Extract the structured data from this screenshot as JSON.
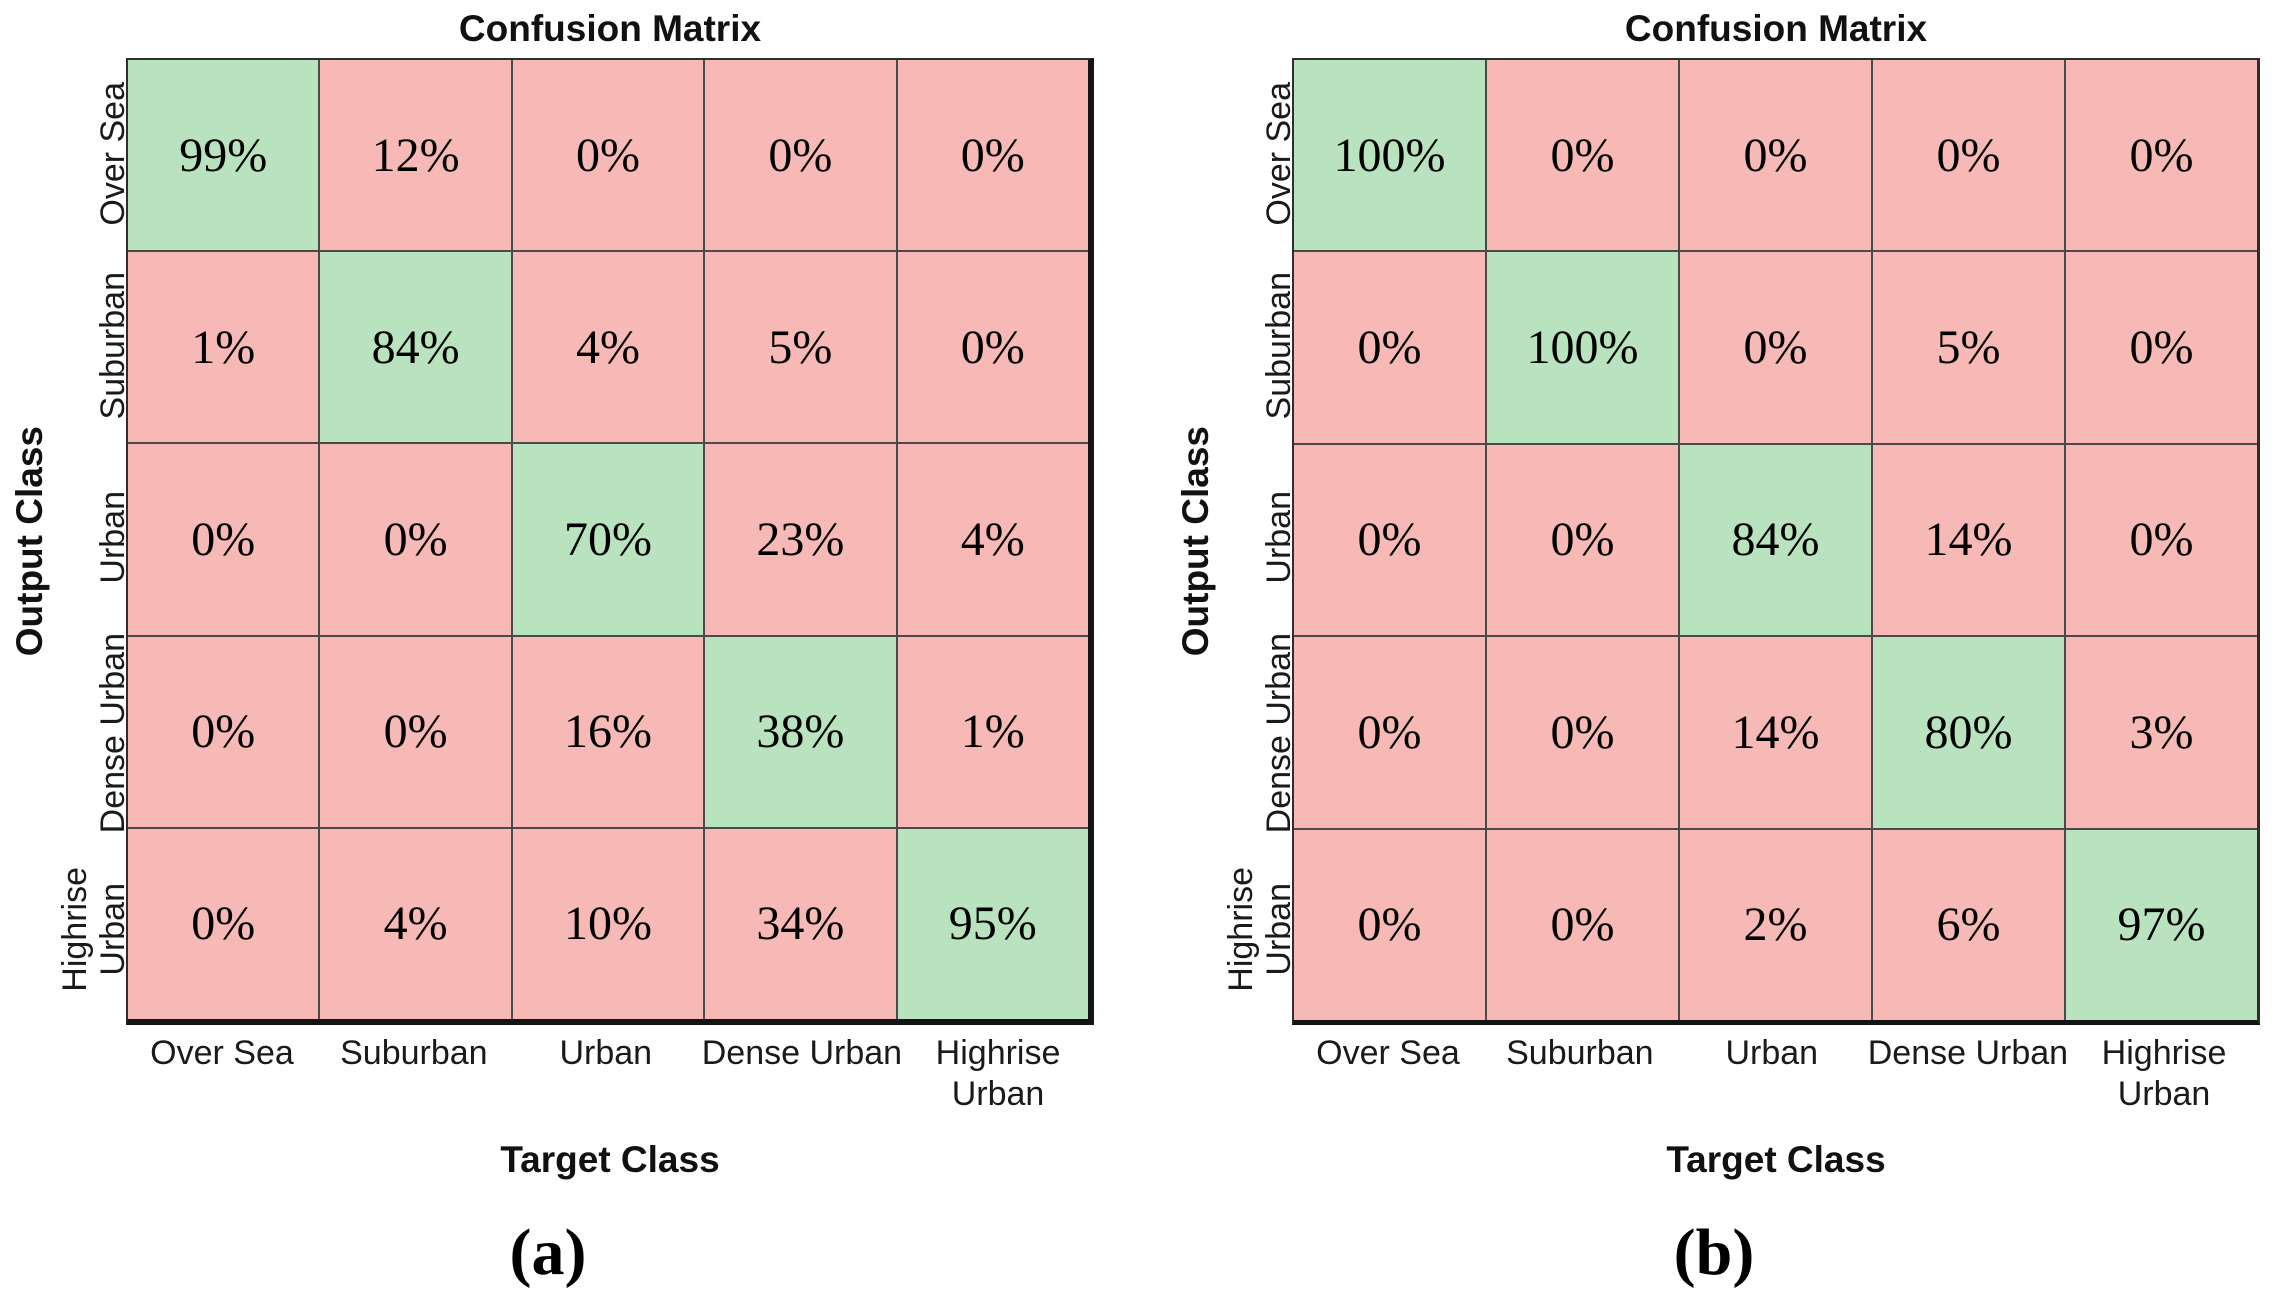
{
  "colors": {
    "grid_line": "#4a4a4a",
    "outer_border": "#2e2e2e",
    "heavy_border": "#141414",
    "diagonal": "#b9e3be",
    "off_diagonal": "#f6b9b6",
    "text": "#000000"
  },
  "chart_data": [
    {
      "type": "heatmap",
      "title": "Confusion Matrix",
      "xlabel": "Target Class",
      "ylabel": "Output Class",
      "caption": "(a)",
      "x_categories": [
        "Over Sea",
        "Suburban",
        "Urban",
        "Dense Urban",
        "Highrise Urban"
      ],
      "y_categories": [
        "Over Sea",
        "Suburban",
        "Urban",
        "Dense Urban",
        "Highrise Urban"
      ],
      "x_tick_lines": [
        [
          "Over Sea"
        ],
        [
          "Suburban"
        ],
        [
          "Urban"
        ],
        [
          "Dense Urban"
        ],
        [
          "Highrise",
          "Urban"
        ]
      ],
      "y_tick_lines": [
        [
          "Over Sea"
        ],
        [
          "Suburban"
        ],
        [
          "Urban"
        ],
        [
          "Dense Urban"
        ],
        [
          "Highrise",
          "Urban"
        ]
      ],
      "values": [
        [
          99,
          12,
          0,
          0,
          0
        ],
        [
          1,
          84,
          4,
          5,
          0
        ],
        [
          0,
          0,
          70,
          23,
          4
        ],
        [
          0,
          0,
          16,
          38,
          1
        ],
        [
          0,
          4,
          10,
          34,
          95
        ]
      ],
      "unit": "%",
      "diagonal_color": "#b9e3be",
      "off_diagonal_color": "#f6b9b6",
      "legend": "none",
      "grid": "on"
    },
    {
      "type": "heatmap",
      "title": "Confusion Matrix",
      "xlabel": "Target Class",
      "ylabel": "Output Class",
      "caption": "(b)",
      "x_categories": [
        "Over Sea",
        "Suburban",
        "Urban",
        "Dense Urban",
        "Highrise Urban"
      ],
      "y_categories": [
        "Over Sea",
        "Suburban",
        "Urban",
        "Dense Urban",
        "Highrise Urban"
      ],
      "x_tick_lines": [
        [
          "Over Sea"
        ],
        [
          "Suburban"
        ],
        [
          "Urban"
        ],
        [
          "Dense Urban"
        ],
        [
          "Highrise",
          "Urban"
        ]
      ],
      "y_tick_lines": [
        [
          "Over Sea"
        ],
        [
          "Suburban"
        ],
        [
          "Urban"
        ],
        [
          "Dense Urban"
        ],
        [
          "Highrise",
          "Urban"
        ]
      ],
      "values": [
        [
          100,
          0,
          0,
          0,
          0
        ],
        [
          0,
          100,
          0,
          5,
          0
        ],
        [
          0,
          0,
          84,
          14,
          0
        ],
        [
          0,
          0,
          14,
          80,
          3
        ],
        [
          0,
          0,
          2,
          6,
          97
        ]
      ],
      "unit": "%",
      "diagonal_color": "#b9e3be",
      "off_diagonal_color": "#f6b9b6",
      "legend": "none",
      "grid": "on"
    }
  ]
}
